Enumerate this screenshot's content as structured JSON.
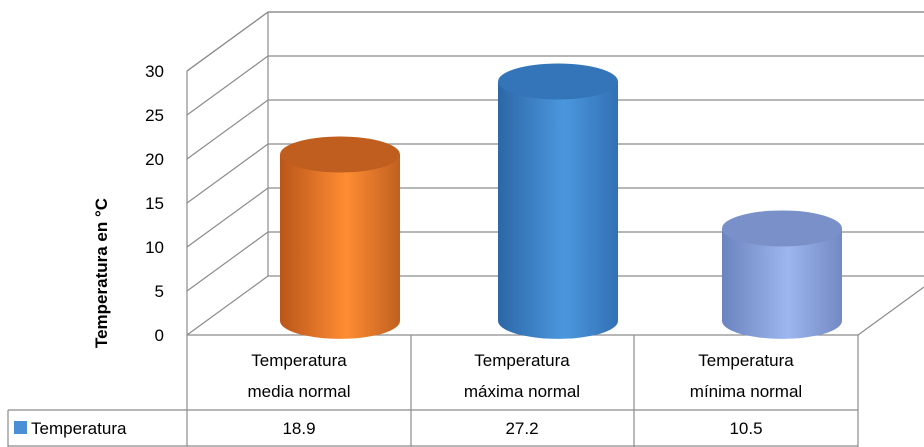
{
  "chart_data": {
    "type": "bar",
    "style": "3d-cylinder-with-data-table",
    "categories": [
      [
        "Temperatura",
        "media normal"
      ],
      [
        "Temperatura",
        "máxima normal"
      ],
      [
        "Temperatura",
        "mínima normal"
      ]
    ],
    "series": [
      {
        "name": "Temperatura",
        "values": [
          18.9,
          27.2,
          10.5
        ]
      }
    ],
    "value_labels": [
      "18.9",
      "27.2",
      "10.5"
    ],
    "bar_colors": [
      "#f07f25",
      "#3d86c8",
      "#8aa4dc"
    ],
    "legend_color": "#4a8fd6",
    "ylabel": "Temperatura en °C",
    "ylim": [
      0,
      30
    ],
    "yticks": [
      0,
      5,
      10,
      15,
      20,
      25,
      30
    ],
    "grid": true,
    "legend_placement": "data-table-left"
  }
}
